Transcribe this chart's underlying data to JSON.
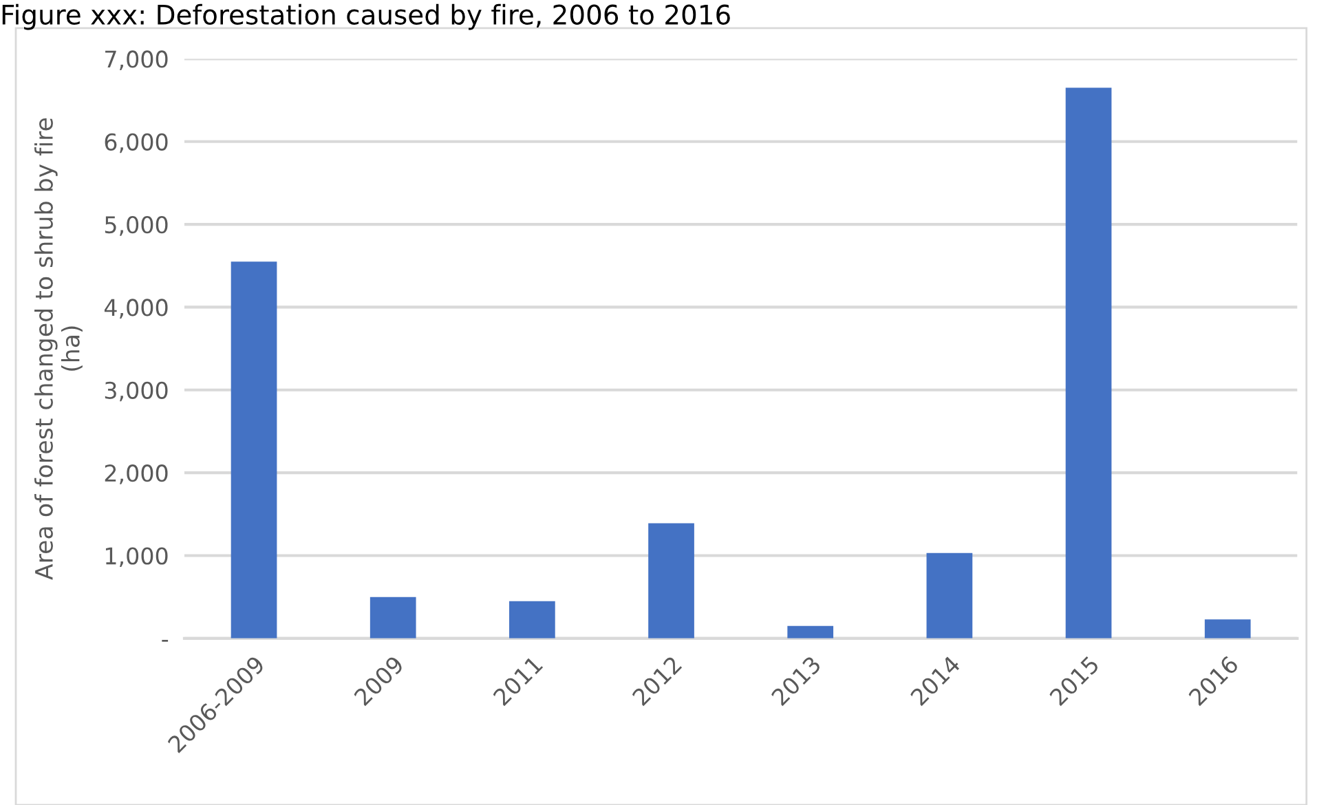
{
  "chart_data": {
    "type": "bar",
    "title": "Figure xxx: Deforestation caused by fire, 2006 to 2016",
    "ylabel": "Area of forest changed to shrub by fire\n(ha)",
    "categories": [
      "2006-2009",
      "2009",
      "2011",
      "2012",
      "2013",
      "2014",
      "2015",
      "2016"
    ],
    "values": [
      4550,
      500,
      450,
      1390,
      150,
      1030,
      6650,
      230
    ],
    "color": "#4472c4",
    "ylim": [
      0,
      7000
    ],
    "yticks": [
      {
        "value": 0,
        "label": "-"
      },
      {
        "value": 1000,
        "label": "1,000"
      },
      {
        "value": 2000,
        "label": "2,000"
      },
      {
        "value": 3000,
        "label": "3,000"
      },
      {
        "value": 4000,
        "label": "4,000"
      },
      {
        "value": 5000,
        "label": "5,000"
      },
      {
        "value": 6000,
        "label": "6,000"
      },
      {
        "value": 7000,
        "label": "7,000"
      }
    ],
    "grid": "y"
  }
}
